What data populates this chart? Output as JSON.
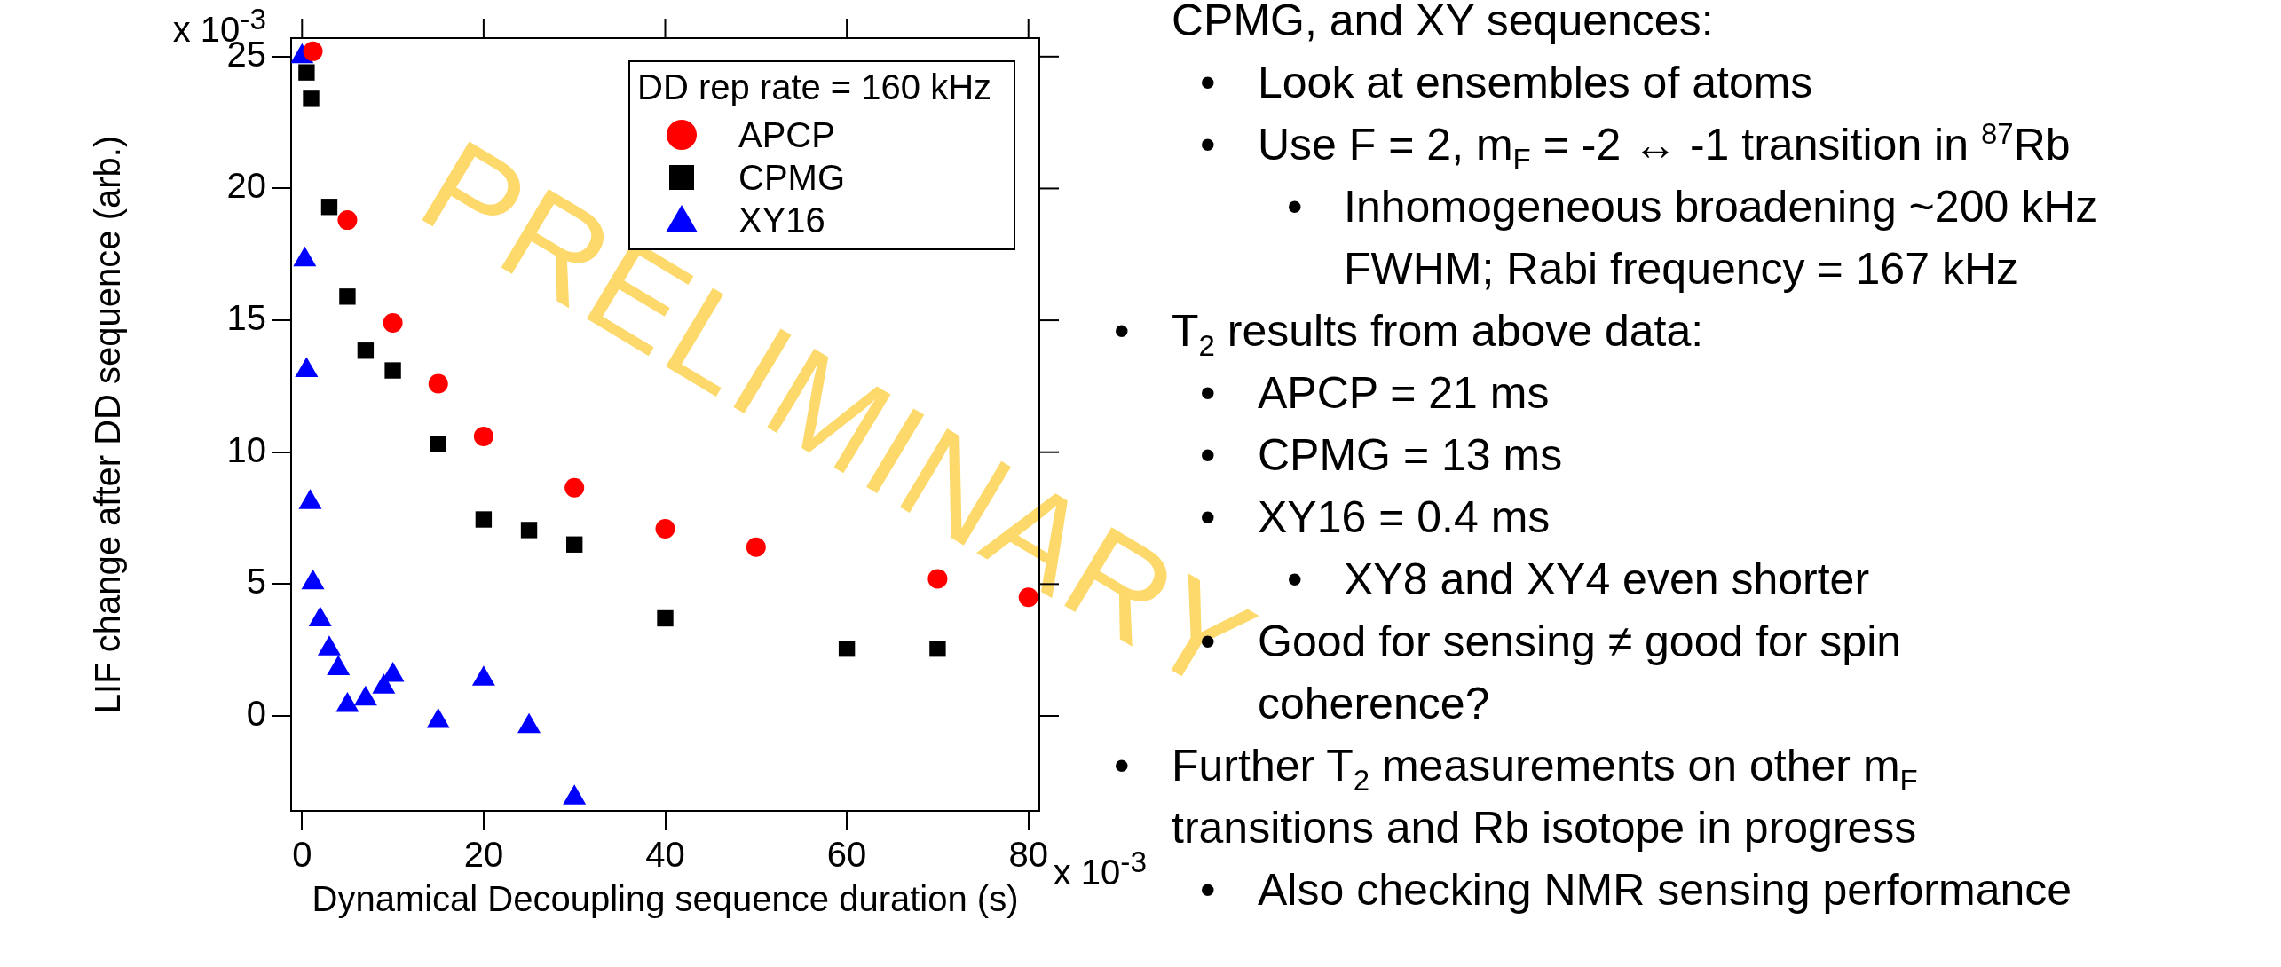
{
  "chart_data": {
    "type": "scatter",
    "xlabel": "Dynamical Decoupling sequence duration (s)",
    "ylabel": "LIF change after DD sequence (arb.)",
    "legend_title": "DD rep rate = 160 kHz",
    "legend": "top right",
    "grid": false,
    "xlim": [
      -1.2,
      81.2
    ],
    "ylim": [
      -3.6,
      25.7
    ],
    "xticks": [
      0,
      20,
      40,
      60,
      80
    ],
    "yticks": [
      0,
      5,
      10,
      15,
      20,
      25
    ],
    "series": [
      {
        "name": "APCP",
        "color": "#ff0000",
        "marker": "circle",
        "x": [
          1.2,
          5,
          10,
          15,
          20,
          30,
          40,
          50,
          70,
          80
        ],
        "values": [
          25.2,
          18.8,
          14.9,
          12.6,
          10.6,
          8.65,
          7.1,
          6.4,
          5.2,
          4.5
        ]
      },
      {
        "name": "CPMG",
        "color": "#000000",
        "marker": "square",
        "x": [
          0.5,
          1,
          3,
          5,
          7,
          10,
          15,
          20,
          25,
          30,
          40,
          60,
          70
        ],
        "values": [
          24.4,
          23.4,
          19.3,
          15.9,
          13.85,
          13.1,
          10.3,
          7.45,
          7.05,
          6.5,
          3.7,
          2.55,
          2.55
        ]
      },
      {
        "name": "XY16",
        "color": "#0000ff",
        "marker": "triangle",
        "x": [
          0,
          0.3,
          0.5,
          0.9,
          1.2,
          2,
          3,
          4,
          5,
          7,
          9,
          10,
          15,
          20,
          25,
          30
        ],
        "values": [
          25.0,
          17.3,
          13.1,
          8.1,
          5.05,
          3.65,
          2.55,
          1.8,
          0.4,
          0.65,
          1.1,
          1.55,
          -0.2,
          1.4,
          -0.4,
          -3.1
        ]
      }
    ],
    "annotations": [
      "x 10$^{-3}$",
      "x 10$^{-3}$",
      "CPMG, and XY sequences:",
      "• Look at ensembles of atoms",
      "• Use F = 2, m$_{F}$ = -2 ↔ -1 transition in $^{87}$Rb",
      "• Inhomogeneous broadening ~200 kHz FWHM; Rabi frequency = 167 kHz",
      "• T$_{2}$ results from above data:",
      "• APCP = 21 ms",
      "• CPMG = 13 ms",
      "• XY16 = 0.4 ms",
      "• XY8 and XY4 even shorter",
      "• Good for sensing  ≠ good for spin coherence?",
      "• Further T$_{2}$  measurements on other m$_{F}$ transitions and Rb isotope in progress",
      "• Also checking NMR sensing performance",
      "PRELIMINARY"
    ]
  }
}
